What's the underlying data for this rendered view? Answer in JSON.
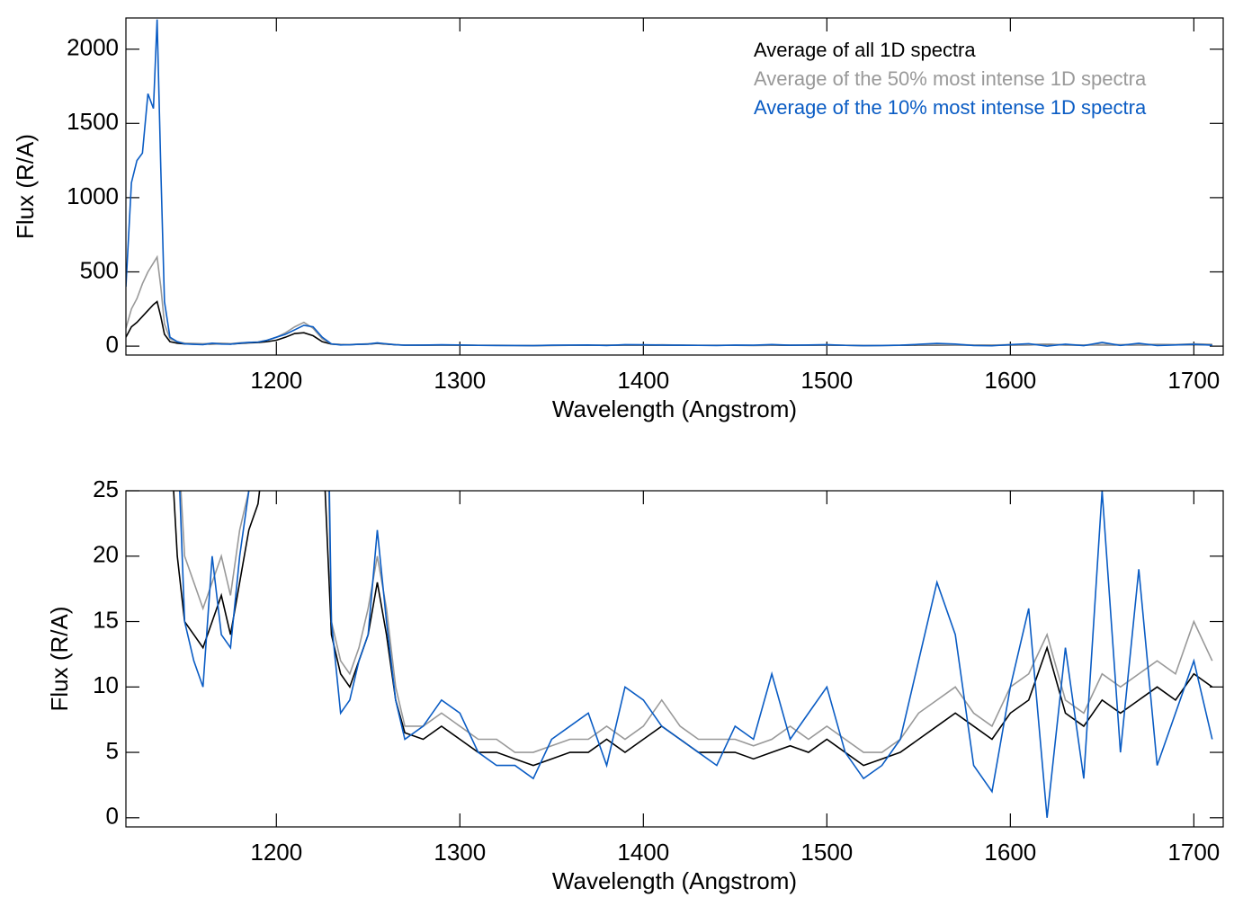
{
  "chart_data": {
    "type": "line",
    "xlabel": "Wavelength (Angstrom)",
    "ylabel": "Flux (R/A)",
    "xlim": [
      1118,
      1716
    ],
    "xticks": [
      1200,
      1300,
      1400,
      1500,
      1600,
      1700
    ],
    "x": [
      1118,
      1121,
      1124,
      1127,
      1130,
      1133,
      1135,
      1137,
      1139,
      1142,
      1146,
      1150,
      1155,
      1160,
      1165,
      1170,
      1175,
      1180,
      1185,
      1190,
      1195,
      1200,
      1205,
      1210,
      1215,
      1220,
      1225,
      1230,
      1235,
      1240,
      1245,
      1250,
      1255,
      1260,
      1265,
      1270,
      1280,
      1290,
      1300,
      1310,
      1320,
      1330,
      1340,
      1350,
      1360,
      1370,
      1380,
      1390,
      1400,
      1410,
      1420,
      1430,
      1440,
      1450,
      1460,
      1470,
      1480,
      1490,
      1500,
      1510,
      1520,
      1530,
      1540,
      1550,
      1560,
      1570,
      1580,
      1590,
      1600,
      1610,
      1620,
      1630,
      1640,
      1650,
      1660,
      1670,
      1680,
      1690,
      1700,
      1710
    ],
    "series": [
      {
        "name": "Average of all 1D spectra",
        "color": "#000000",
        "values": [
          60,
          130,
          160,
          200,
          240,
          280,
          300,
          200,
          80,
          30,
          20,
          15,
          14,
          13,
          15,
          17,
          14,
          18,
          22,
          24,
          30,
          40,
          60,
          85,
          90,
          70,
          30,
          14,
          11,
          10,
          12,
          14,
          18,
          14,
          9,
          6.5,
          6,
          7,
          6,
          5,
          5,
          4.5,
          4,
          4.5,
          5,
          5,
          6,
          5,
          6,
          7,
          6,
          5,
          5,
          5,
          4.5,
          5,
          5.5,
          5,
          6,
          5,
          4,
          4.5,
          5,
          6,
          7,
          8,
          7,
          6,
          8,
          9,
          13,
          8,
          7,
          9,
          8,
          9,
          10,
          9,
          11,
          10
        ]
      },
      {
        "name": "Average of the 50% most intense 1D spectra",
        "color": "#999999",
        "values": [
          120,
          250,
          320,
          420,
          500,
          560,
          600,
          400,
          150,
          50,
          30,
          20,
          18,
          16,
          18,
          20,
          17,
          22,
          25,
          28,
          40,
          60,
          90,
          130,
          160,
          120,
          50,
          15,
          12,
          11,
          13,
          16,
          20,
          16,
          10,
          7,
          7,
          8,
          7,
          6,
          6,
          5,
          5,
          5.5,
          6,
          6,
          7,
          6,
          7,
          9,
          7,
          6,
          6,
          6,
          5.5,
          6,
          7,
          6,
          7,
          6,
          5,
          5,
          6,
          8,
          9,
          10,
          8,
          7,
          10,
          11,
          14,
          9,
          8,
          11,
          10,
          11,
          12,
          11,
          15,
          12
        ]
      },
      {
        "name": "Average of the 10% most intense 1D spectra",
        "color": "#0a5cc4",
        "values": [
          400,
          1100,
          1250,
          1300,
          1700,
          1600,
          2200,
          1200,
          300,
          60,
          30,
          15,
          12,
          10,
          20,
          14,
          13,
          20,
          25,
          27,
          40,
          60,
          80,
          110,
          140,
          130,
          60,
          15,
          8,
          9,
          12,
          14,
          22,
          15,
          9,
          6,
          7,
          9,
          8,
          5,
          4,
          4,
          3,
          6,
          7,
          8,
          4,
          10,
          9,
          7,
          6,
          5,
          4,
          7,
          6,
          11,
          6,
          8,
          10,
          5,
          3,
          4,
          6,
          12,
          18,
          14,
          4,
          2,
          10,
          16,
          0,
          13,
          3,
          25,
          5,
          19,
          4,
          8,
          12,
          6
        ]
      }
    ],
    "panels": [
      {
        "ylim": [
          -60,
          2210
        ],
        "yticks": [
          0,
          500,
          1000,
          1500,
          2000
        ],
        "legend": "top-right"
      },
      {
        "ylim": [
          -0.7,
          25
        ],
        "yticks": [
          0,
          5,
          10,
          15,
          20,
          25
        ],
        "legend": null
      }
    ]
  }
}
